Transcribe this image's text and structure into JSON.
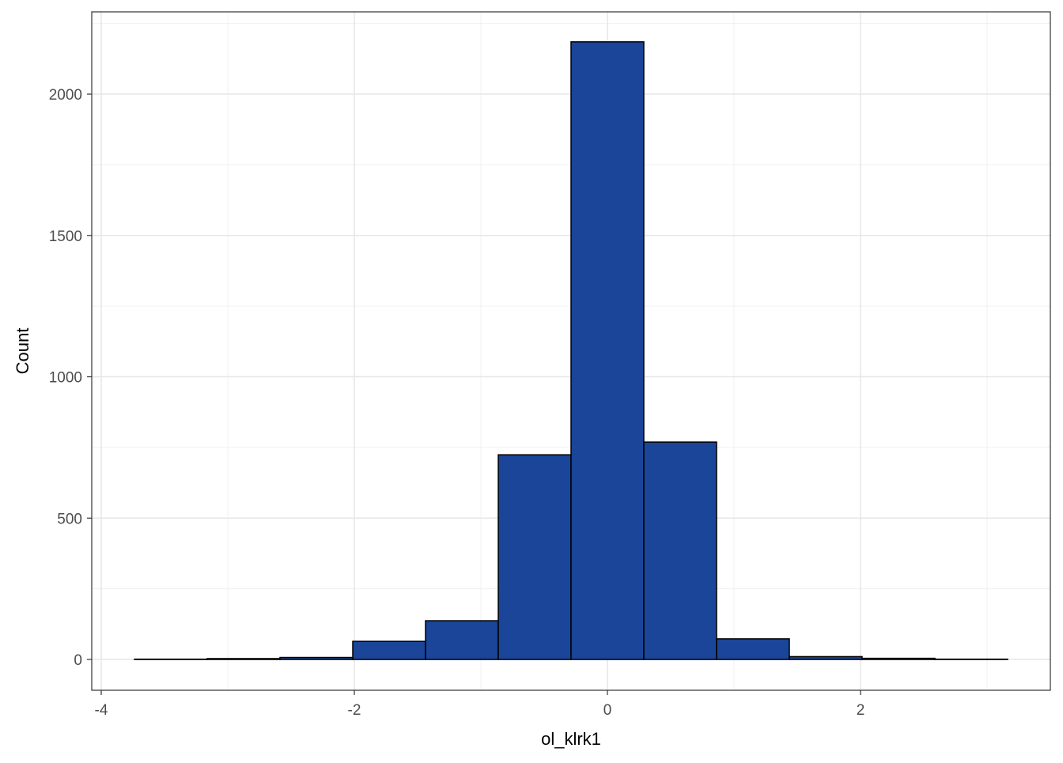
{
  "chart_data": {
    "type": "histogram",
    "x_label": "ol_klrk1",
    "y_label": "Count",
    "bins": [
      -3.7375,
      -3.1625,
      -2.5875,
      -2.0125,
      -1.4375,
      -0.8625,
      -0.2875,
      0.2875,
      0.8625,
      1.4375,
      2.0125,
      2.5875,
      3.1625
    ],
    "values": [
      1,
      3,
      7,
      64,
      137,
      724,
      2185,
      769,
      73,
      10,
      4,
      1
    ],
    "color": "#1a4599",
    "xlim": [
      -4.075,
      3.5
    ],
    "ylim": [
      -109,
      2291
    ],
    "xticks": [
      -4,
      -2,
      0,
      2
    ],
    "yticks": [
      0,
      500,
      1000,
      1500,
      2000
    ],
    "x_minor_ticks": [
      -3,
      -1,
      1,
      3
    ],
    "y_minor_ticks": [
      250,
      750,
      1250,
      1750,
      2250
    ],
    "grid": true
  }
}
